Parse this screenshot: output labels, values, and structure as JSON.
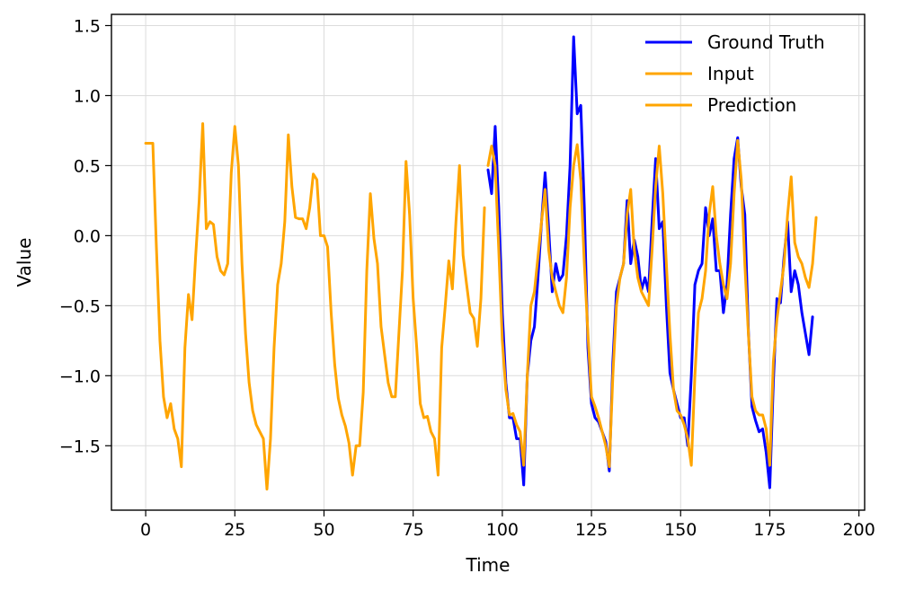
{
  "chart_data": {
    "type": "line",
    "xlabel": "Time",
    "ylabel": "Value",
    "xlim": [
      -9.6,
      201.6
    ],
    "ylim": [
      -1.96,
      1.58
    ],
    "xticks": [
      0,
      25,
      50,
      75,
      100,
      125,
      150,
      175,
      200
    ],
    "xtick_labels": [
      "0",
      "25",
      "50",
      "75",
      "100",
      "125",
      "150",
      "175",
      "200"
    ],
    "yticks": [
      -1.5,
      -1.0,
      -0.5,
      0.0,
      0.5,
      1.0,
      1.5
    ],
    "ytick_labels": [
      "−1.5",
      "−1.0",
      "−0.5",
      "0.0",
      "0.5",
      "1.0",
      "1.5"
    ],
    "grid": true,
    "legend_placement": "top-right",
    "series": [
      {
        "name": "Ground Truth",
        "color": "#0000ff",
        "x_start": 96,
        "values": [
          0.47,
          0.3,
          0.78,
          0.2,
          -0.55,
          -1.05,
          -1.3,
          -1.3,
          -1.45,
          -1.45,
          -1.78,
          -1.0,
          -0.75,
          -0.65,
          -0.3,
          0.1,
          0.45,
          0.05,
          -0.4,
          -0.2,
          -0.32,
          -0.28,
          0.0,
          0.5,
          1.42,
          0.87,
          0.93,
          0.2,
          -0.8,
          -1.2,
          -1.3,
          -1.33,
          -1.4,
          -1.47,
          -1.68,
          -0.9,
          -0.4,
          -0.3,
          -0.2,
          0.25,
          -0.2,
          -0.03,
          -0.15,
          -0.39,
          -0.3,
          -0.4,
          0.1,
          0.55,
          0.05,
          0.1,
          -0.5,
          -0.98,
          -1.1,
          -1.2,
          -1.3,
          -1.3,
          -1.5,
          -1.0,
          -0.35,
          -0.25,
          -0.2,
          0.2,
          0.0,
          0.12,
          -0.25,
          -0.25,
          -0.55,
          -0.35,
          0.15,
          0.55,
          0.7,
          0.35,
          0.15,
          -0.68,
          -1.22,
          -1.32,
          -1.4,
          -1.38,
          -1.55,
          -1.8,
          -1.05,
          -0.45,
          -0.48,
          -0.15,
          0.1,
          -0.4,
          -0.25,
          -0.35,
          -0.55,
          -0.7,
          -0.85,
          -0.58
        ]
      },
      {
        "name": "Input",
        "color": "#ffa500",
        "x_start": 0,
        "values": [
          0.66,
          0.66,
          0.66,
          -0.08,
          -0.75,
          -1.15,
          -1.3,
          -1.2,
          -1.38,
          -1.45,
          -1.65,
          -0.8,
          -0.42,
          -0.6,
          -0.15,
          0.25,
          0.8,
          0.05,
          0.1,
          0.08,
          -0.15,
          -0.25,
          -0.28,
          -0.2,
          0.45,
          0.78,
          0.5,
          -0.2,
          -0.7,
          -1.05,
          -1.25,
          -1.35,
          -1.4,
          -1.45,
          -1.81,
          -1.45,
          -0.8,
          -0.35,
          -0.2,
          0.1,
          0.72,
          0.35,
          0.13,
          0.12,
          0.12,
          0.05,
          0.2,
          0.44,
          0.4,
          0.0,
          0.0,
          -0.08,
          -0.55,
          -0.92,
          -1.16,
          -1.28,
          -1.36,
          -1.48,
          -1.71,
          -1.5,
          -1.5,
          -1.12,
          -0.25,
          0.3,
          -0.02,
          -0.2,
          -0.65,
          -0.85,
          -1.05,
          -1.15,
          -1.15,
          -0.7,
          -0.25,
          0.53,
          0.15,
          -0.45,
          -0.8,
          -1.2,
          -1.3,
          -1.29,
          -1.4,
          -1.45,
          -1.71,
          -0.8,
          -0.5,
          -0.18,
          -0.38,
          0.1,
          0.5,
          -0.14,
          -0.35,
          -0.55,
          -0.59,
          -0.79,
          -0.45,
          0.2
        ]
      },
      {
        "name": "Prediction",
        "color": "#ffa500",
        "x_start": 96,
        "values": [
          0.5,
          0.64,
          0.5,
          -0.1,
          -0.75,
          -1.1,
          -1.28,
          -1.27,
          -1.35,
          -1.4,
          -1.64,
          -1.0,
          -0.5,
          -0.4,
          -0.15,
          0.1,
          0.33,
          -0.1,
          -0.3,
          -0.4,
          -0.5,
          -0.55,
          -0.3,
          0.2,
          0.5,
          0.65,
          0.4,
          -0.2,
          -0.7,
          -1.15,
          -1.22,
          -1.3,
          -1.4,
          -1.5,
          -1.65,
          -1.0,
          -0.5,
          -0.3,
          -0.2,
          0.15,
          0.33,
          -0.1,
          -0.3,
          -0.4,
          -0.45,
          -0.5,
          -0.1,
          0.35,
          0.64,
          0.3,
          -0.2,
          -0.7,
          -1.1,
          -1.25,
          -1.28,
          -1.35,
          -1.45,
          -1.64,
          -1.0,
          -0.55,
          -0.45,
          -0.25,
          0.15,
          0.35,
          0.0,
          -0.2,
          -0.35,
          -0.45,
          -0.2,
          0.3,
          0.68,
          0.4,
          -0.2,
          -0.7,
          -1.15,
          -1.25,
          -1.28,
          -1.28,
          -1.38,
          -1.64,
          -0.9,
          -0.6,
          -0.4,
          -0.2,
          0.15,
          0.42,
          -0.05,
          -0.15,
          -0.2,
          -0.3,
          -0.37,
          -0.2,
          0.13
        ]
      }
    ]
  }
}
